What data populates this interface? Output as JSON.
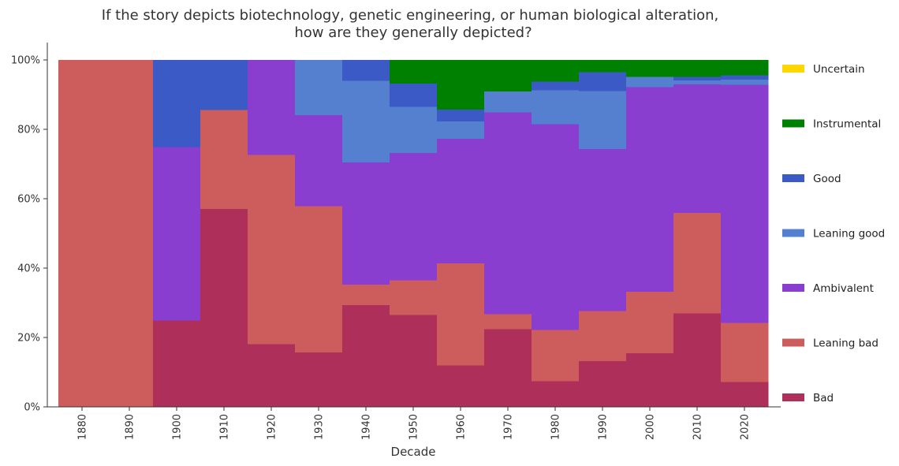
{
  "chart_data": {
    "type": "area",
    "title": [
      "If the story depicts biotechnology, genetic engineering, or human biological alteration,",
      "how are they generally depicted?"
    ],
    "xlabel": "Decade",
    "ylabel": "",
    "ylim": [
      0,
      1
    ],
    "yticks": [
      "0%",
      "20%",
      "40%",
      "60%",
      "80%",
      "100%"
    ],
    "categories": [
      "1880",
      "1890",
      "1900",
      "1910",
      "1920",
      "1930",
      "1940",
      "1950",
      "1960",
      "1970",
      "1980",
      "1990",
      "2000",
      "2010",
      "2020"
    ],
    "series": [
      {
        "name": "Bad",
        "color": "#ad2f5a",
        "values": [
          0,
          0,
          0.25,
          0.571,
          0.182,
          0.158,
          0.294,
          0.266,
          0.12,
          0.225,
          0.075,
          0.133,
          0.156,
          0.27,
          0.072
        ]
      },
      {
        "name": "Leaning bad",
        "color": "#cd5c5c",
        "values": [
          1.0,
          1.0,
          0,
          0.286,
          0.545,
          0.421,
          0.059,
          0.1,
          0.294,
          0.043,
          0.147,
          0.144,
          0.177,
          0.29,
          0.171
        ]
      },
      {
        "name": "Ambivalent",
        "color": "#8a3ed0",
        "values": [
          0,
          0,
          0.5,
          0,
          0.273,
          0.263,
          0.353,
          0.367,
          0.36,
          0.582,
          0.594,
          0.467,
          0.589,
          0.37,
          0.686
        ]
      },
      {
        "name": "Leaning good",
        "color": "#5580d0",
        "values": [
          0,
          0,
          0,
          0,
          0,
          0.158,
          0.235,
          0.133,
          0.05,
          0.06,
          0.097,
          0.167,
          0.03,
          0.012,
          0.015
        ]
      },
      {
        "name": "Good",
        "color": "#3b5ac6",
        "values": [
          0,
          0,
          0.25,
          0.143,
          0,
          0,
          0.059,
          0.067,
          0.034,
          0,
          0.025,
          0.055,
          0,
          0.01,
          0.013
        ]
      },
      {
        "name": "Instrumental",
        "color": "#008000",
        "values": [
          0,
          0,
          0,
          0,
          0,
          0,
          0,
          0.067,
          0.142,
          0.09,
          0.062,
          0.034,
          0.048,
          0.048,
          0.043
        ]
      },
      {
        "name": "Uncertain",
        "color": "#ffd700",
        "values": [
          0,
          0,
          0,
          0,
          0,
          0,
          0,
          0,
          0,
          0,
          0,
          0,
          0,
          0,
          0
        ]
      }
    ],
    "legend_order": [
      "Uncertain",
      "Instrumental",
      "Good",
      "Leaning good",
      "Ambivalent",
      "Leaning bad",
      "Bad"
    ],
    "legend_position": "right",
    "grid": false
  }
}
